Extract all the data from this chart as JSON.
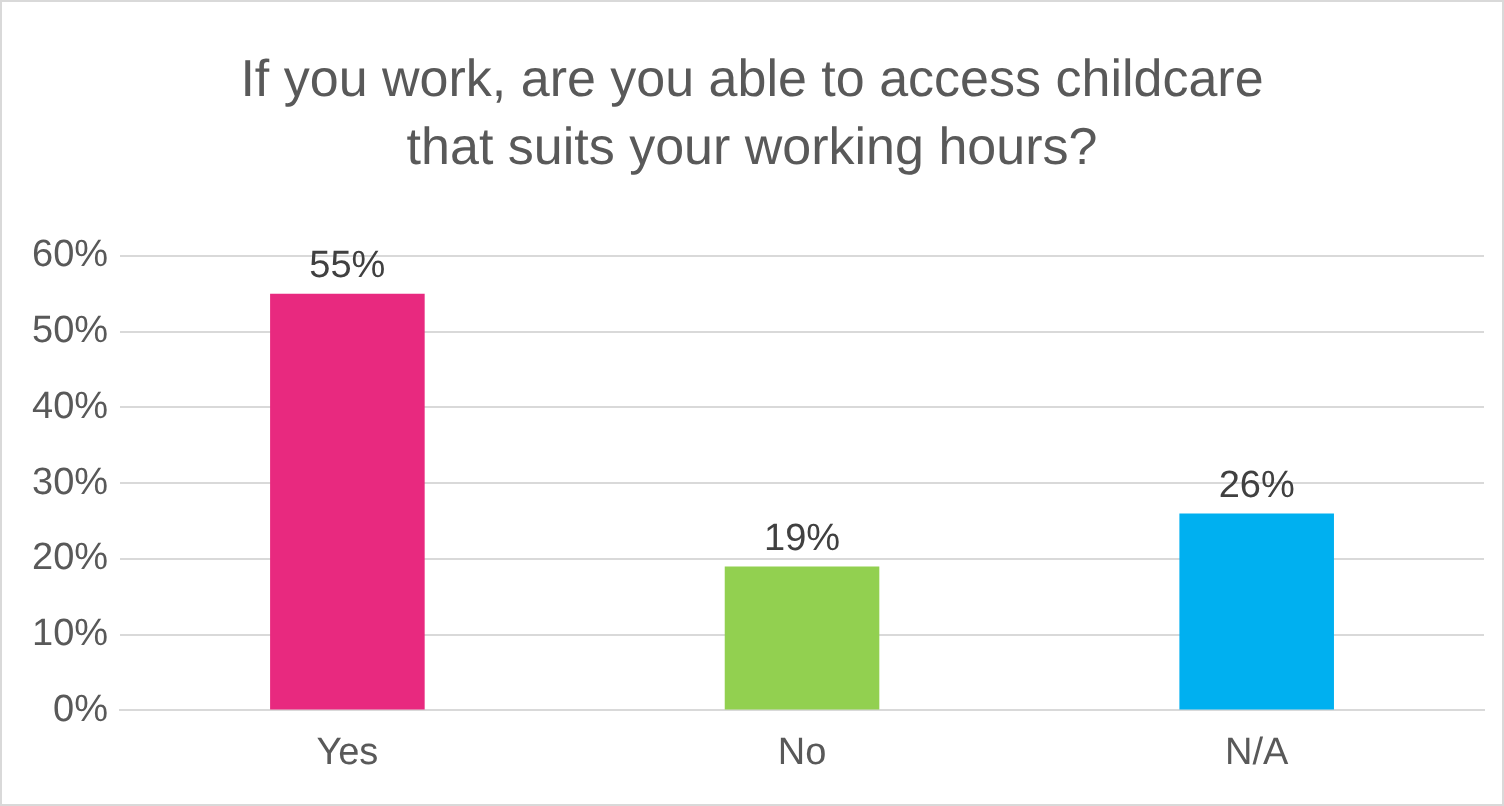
{
  "chart_data": {
    "type": "bar",
    "title": "If you work, are you able to access childcare that suits your working hours?",
    "categories": [
      "Yes",
      "No",
      "N/A"
    ],
    "values": [
      55,
      19,
      26
    ],
    "colors": [
      "#e8297f",
      "#92d050",
      "#00b0f0"
    ],
    "value_labels": [
      "55%",
      "19%",
      "26%"
    ],
    "ylim": [
      0,
      60
    ],
    "yticks": [
      {
        "value": 0,
        "label": "0%"
      },
      {
        "value": 10,
        "label": "10%"
      },
      {
        "value": 20,
        "label": "20%"
      },
      {
        "value": 30,
        "label": "30%"
      },
      {
        "value": 40,
        "label": "40%"
      },
      {
        "value": 50,
        "label": "50%"
      },
      {
        "value": 60,
        "label": "60%"
      }
    ],
    "grid": "y",
    "legend": false
  }
}
